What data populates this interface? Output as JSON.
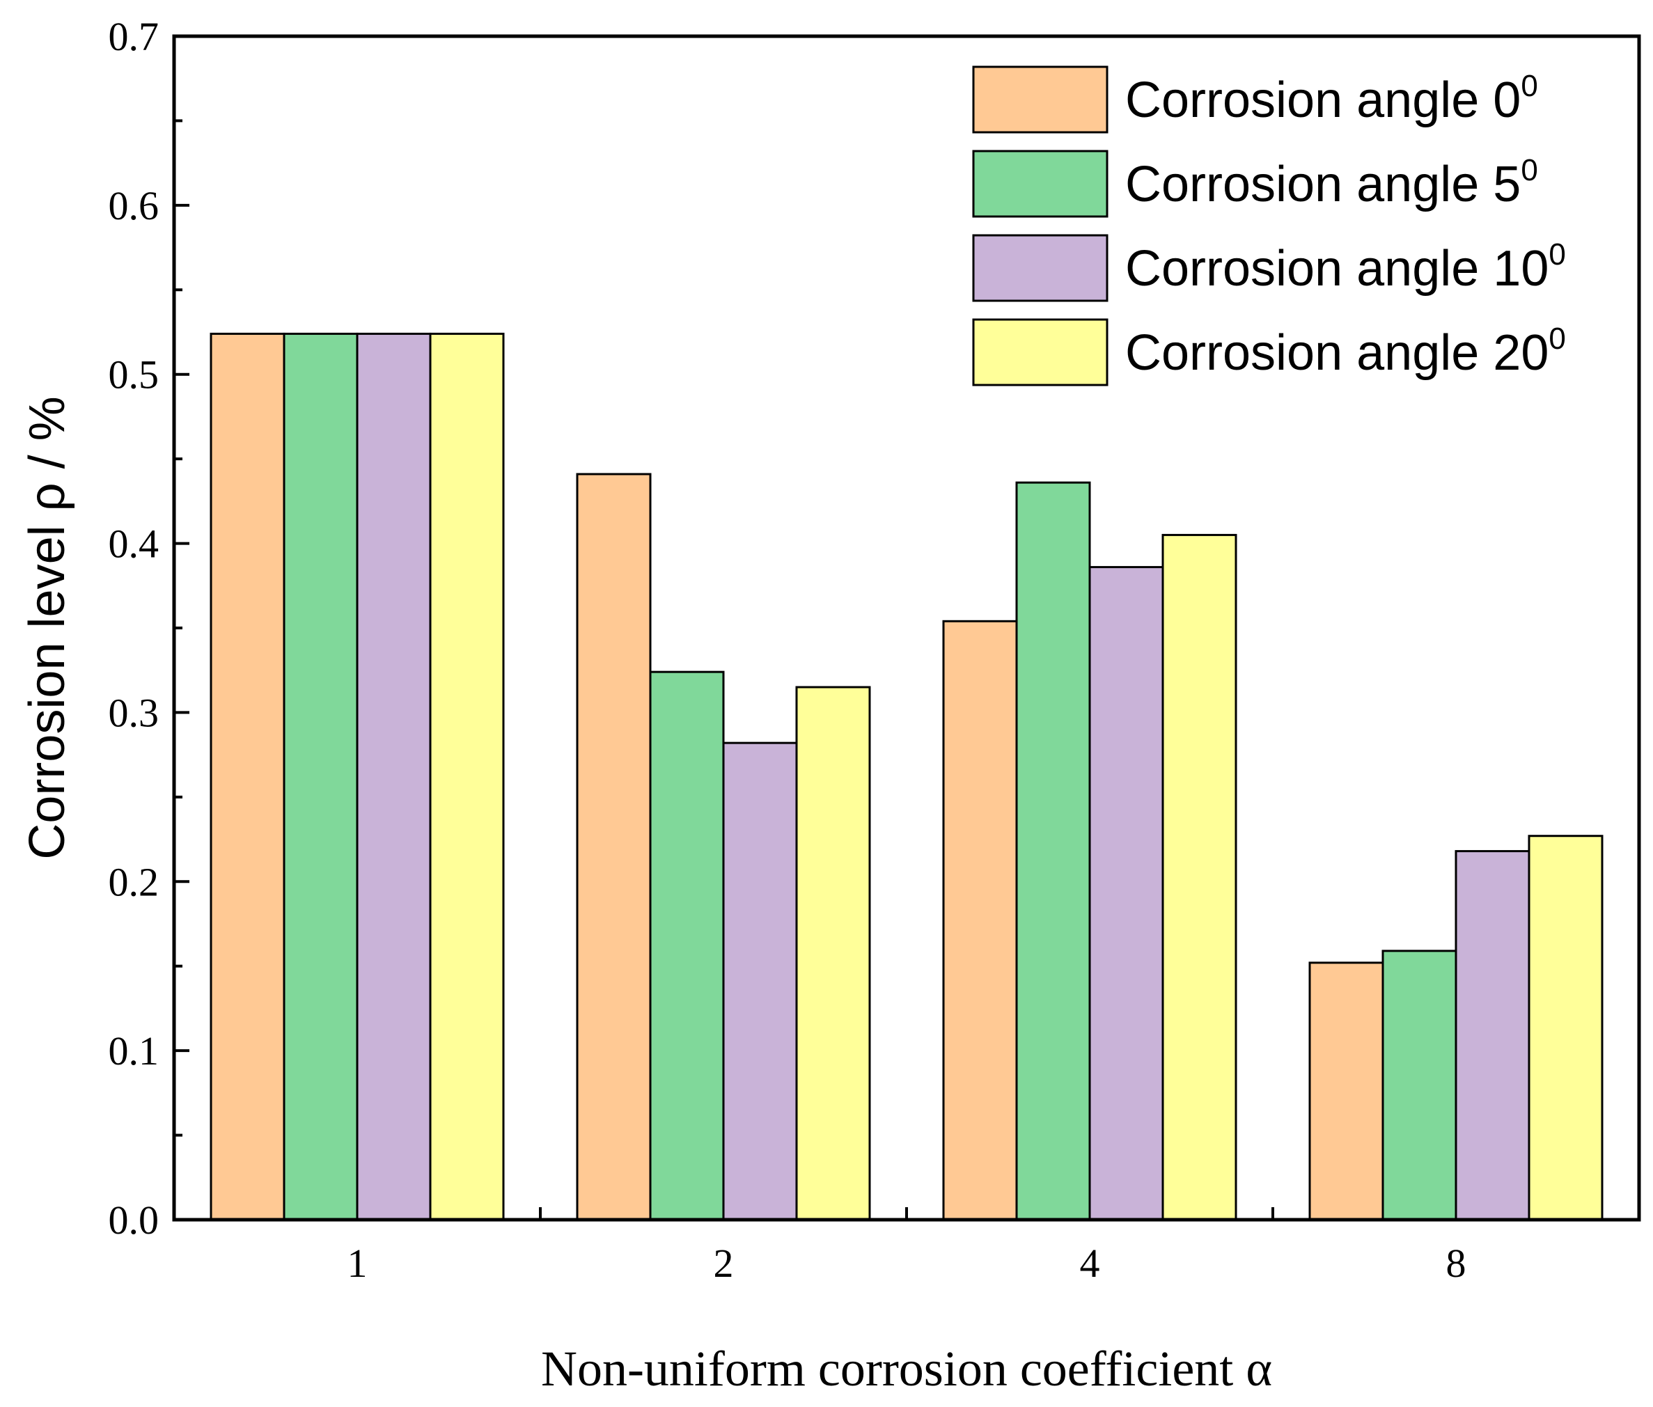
{
  "chart_data": {
    "type": "bar",
    "xlabel": "Non-uniform corrosion coefficient α",
    "ylabel": "Corrosion level ρ / %",
    "categories": [
      "1",
      "2",
      "4",
      "8"
    ],
    "ylim": [
      0,
      0.7
    ],
    "yticks": [
      "0.0",
      "0.1",
      "0.2",
      "0.3",
      "0.4",
      "0.5",
      "0.6",
      "0.7"
    ],
    "legend_position": "top-right",
    "series": [
      {
        "name": "Corrosion angle 0",
        "sup": "0",
        "color": "#FFC994",
        "values": [
          0.524,
          0.441,
          0.354,
          0.152
        ]
      },
      {
        "name": "Corrosion angle 5",
        "sup": "0",
        "color": "#80D89A",
        "values": [
          0.524,
          0.324,
          0.436,
          0.159
        ]
      },
      {
        "name": "Corrosion angle 10",
        "sup": "0",
        "color": "#C9B3D8",
        "values": [
          0.524,
          0.282,
          0.386,
          0.218
        ]
      },
      {
        "name": "Corrosion angle 20",
        "sup": "0",
        "color": "#FFFF99",
        "values": [
          0.524,
          0.315,
          0.405,
          0.227
        ]
      }
    ]
  }
}
